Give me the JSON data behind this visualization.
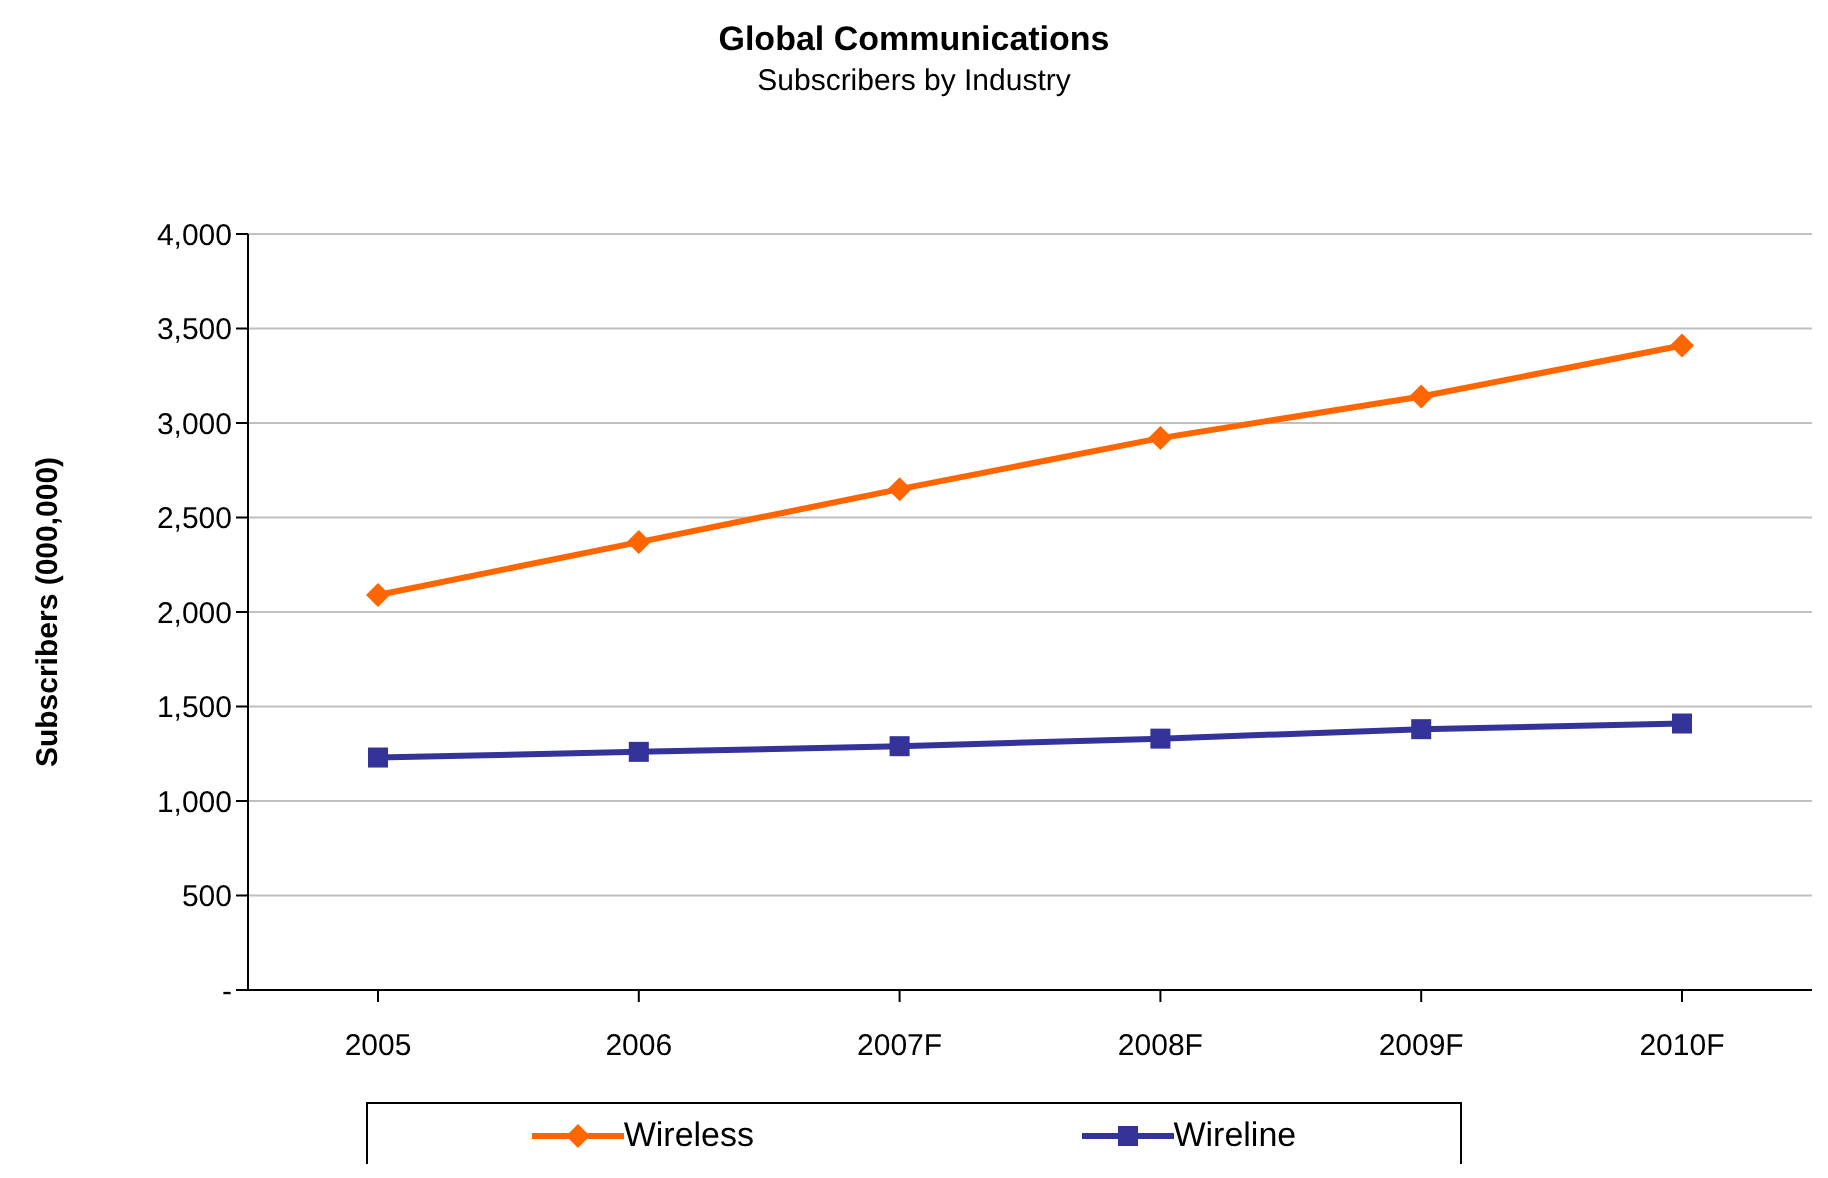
{
  "chart_data": {
    "type": "line",
    "title": "Global Communications",
    "subtitle": "Subscribers by Industry",
    "ylabel": "Subscribers (000,000)",
    "categories": [
      "2005",
      "2006",
      "2007F",
      "2008F",
      "2009F",
      "2010F"
    ],
    "series": [
      {
        "name": "Wireless",
        "color": "#ff6600",
        "marker": "diamond",
        "values": [
          2090,
          2370,
          2650,
          2920,
          3140,
          3410
        ]
      },
      {
        "name": "Wireline",
        "color": "#333399",
        "marker": "square",
        "values": [
          1230,
          1260,
          1290,
          1330,
          1380,
          1410
        ]
      }
    ],
    "ylim": [
      0,
      4000
    ],
    "yticks": [
      {
        "value": 0,
        "label": "-"
      },
      {
        "value": 500,
        "label": "500"
      },
      {
        "value": 1000,
        "label": "1,000"
      },
      {
        "value": 1500,
        "label": "1,500"
      },
      {
        "value": 2000,
        "label": "2,000"
      },
      {
        "value": 2500,
        "label": "2,500"
      },
      {
        "value": 3000,
        "label": "3,000"
      },
      {
        "value": 3500,
        "label": "3,500"
      },
      {
        "value": 4000,
        "label": "4,000"
      }
    ],
    "grid": "y",
    "legend": "bottom"
  }
}
